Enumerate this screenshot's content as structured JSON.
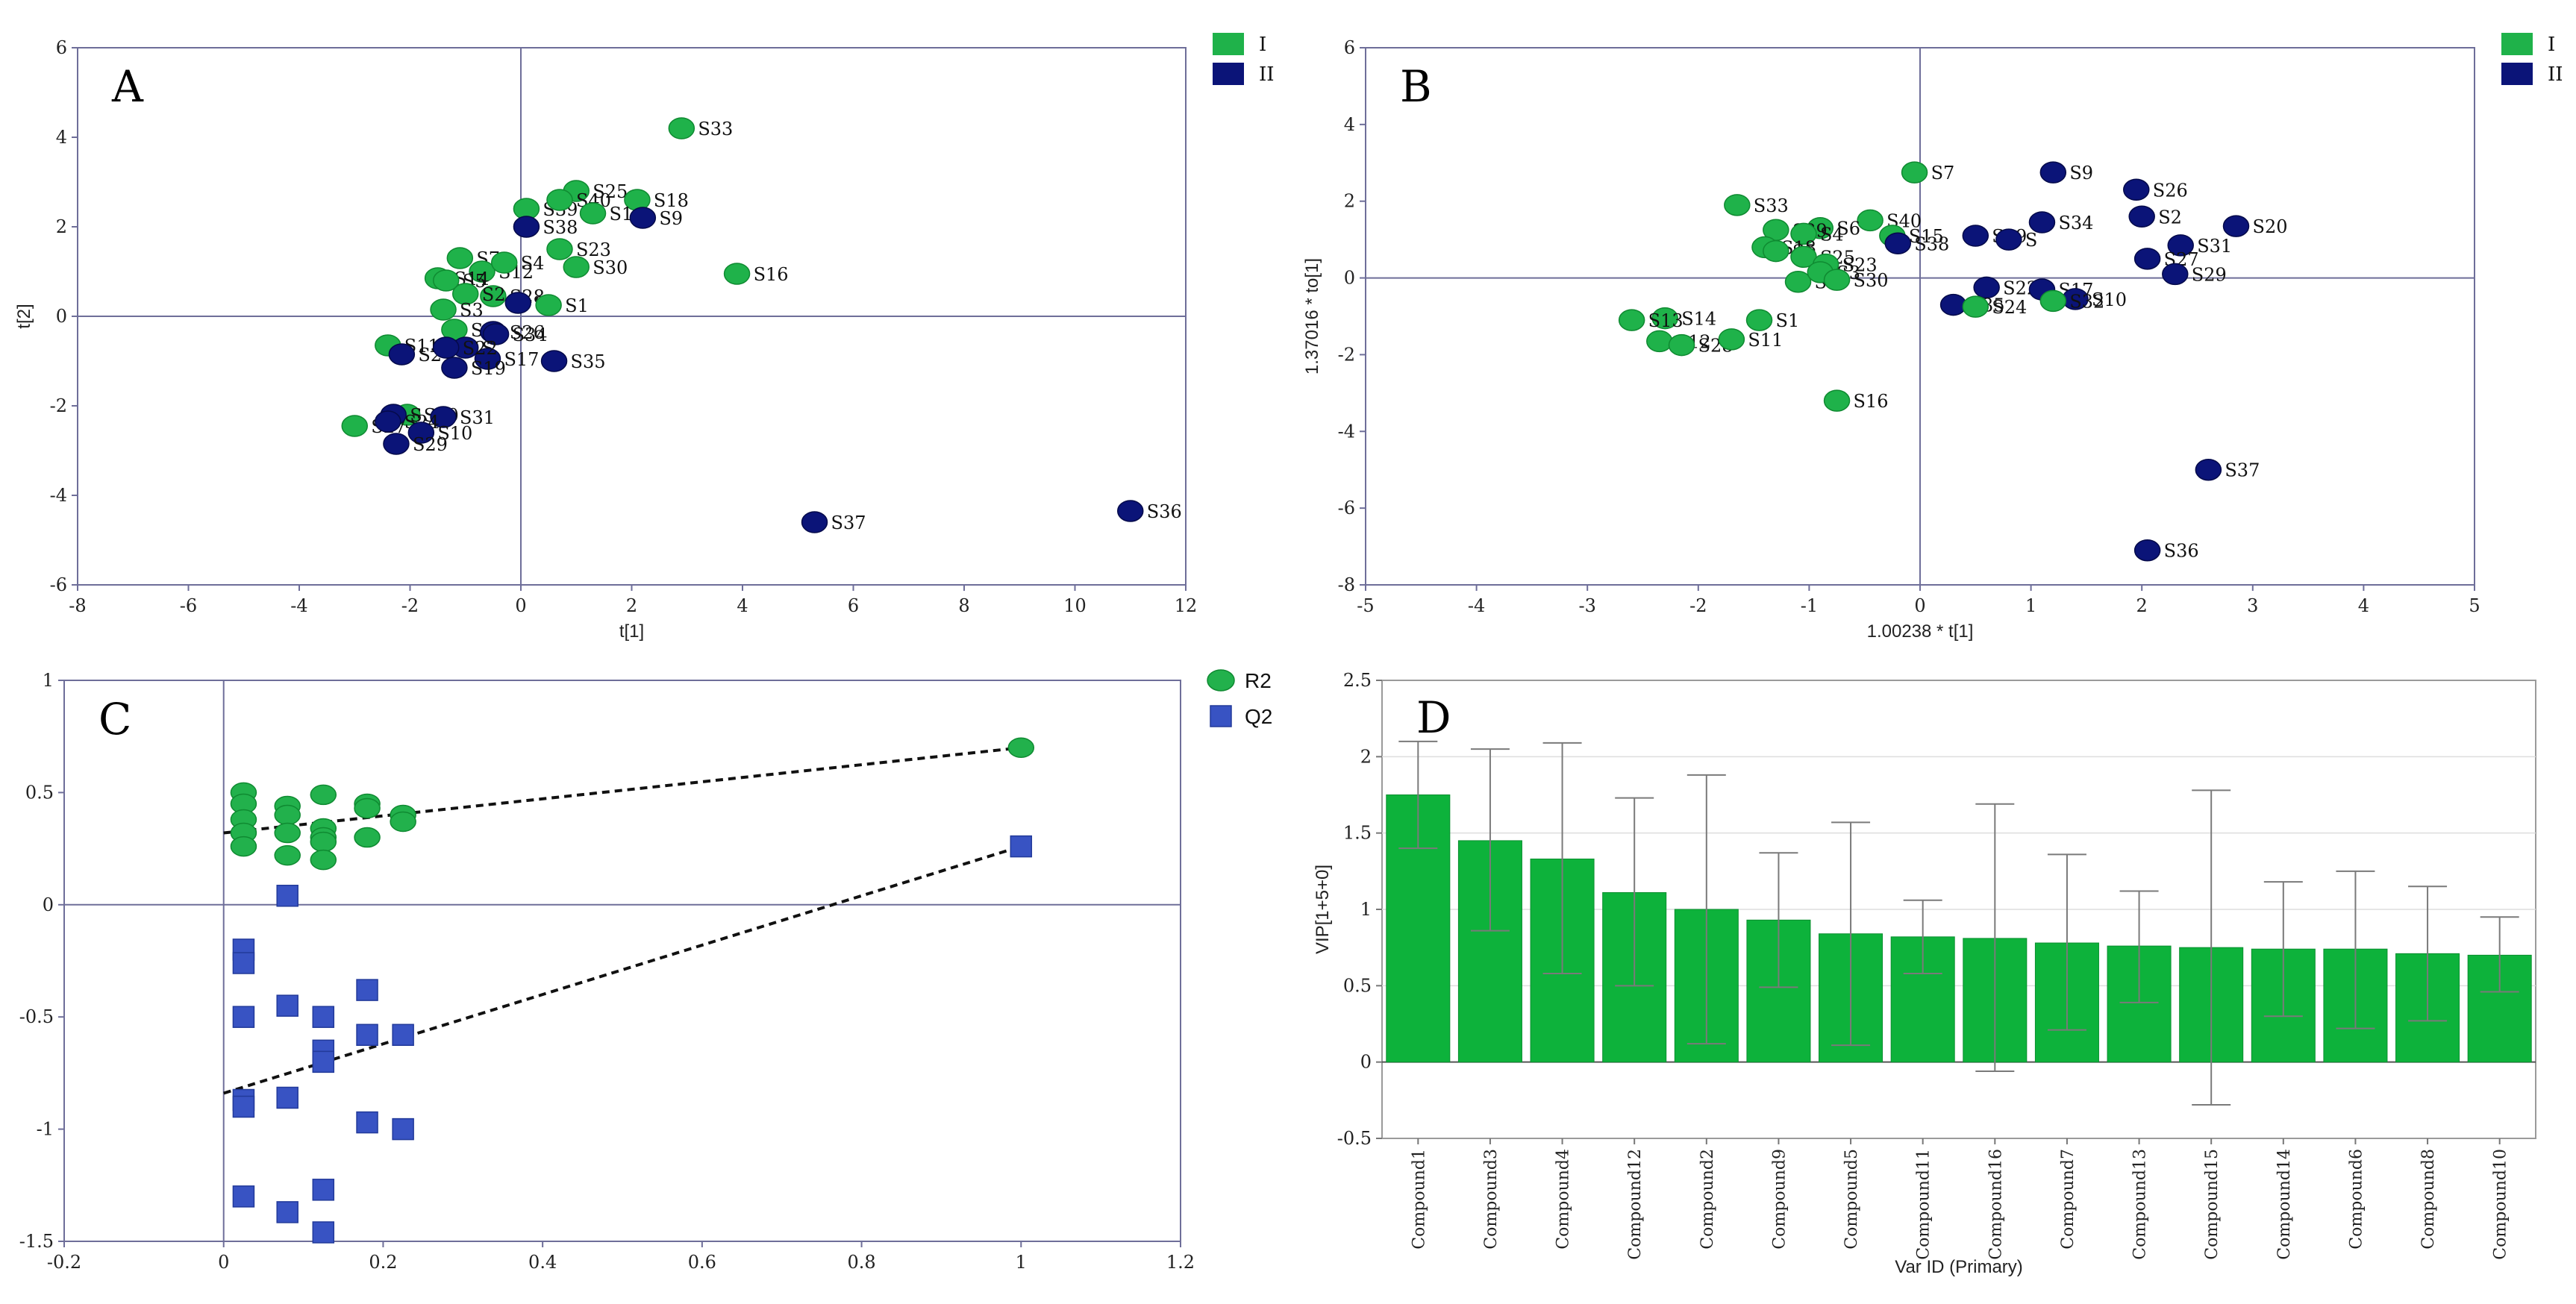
{
  "colors": {
    "group1": "#1fb24a",
    "group1_edge": "#0f8a31",
    "group2": "#0b1478",
    "group2_edge": "#050a4a",
    "r2": "#22b14c",
    "q2": "#3853c3",
    "bar": "#0db23b",
    "axis": "#6e6e99"
  },
  "chart_data": [
    {
      "id": "A",
      "panel_label": "A",
      "type": "scatter",
      "xlabel": "t[1]",
      "ylabel": "t[2]",
      "xlim": [
        -8,
        12
      ],
      "ylim": [
        -6,
        6
      ],
      "xticks": [
        -8,
        -6,
        -4,
        -2,
        0,
        2,
        4,
        6,
        8,
        10,
        12
      ],
      "yticks": [
        -6,
        -4,
        -2,
        0,
        2,
        4,
        6
      ],
      "legend": [
        {
          "group": "I",
          "label": "I"
        },
        {
          "group": "II",
          "label": "II"
        }
      ],
      "points": [
        {
          "label": "S33",
          "x": 2.9,
          "y": 4.2,
          "group": "I"
        },
        {
          "label": "S25",
          "x": 1.0,
          "y": 2.8,
          "group": "I"
        },
        {
          "label": "S39",
          "x": 0.1,
          "y": 2.4,
          "group": "I"
        },
        {
          "label": "S18",
          "x": 2.1,
          "y": 2.6,
          "group": "I"
        },
        {
          "label": "S40",
          "x": 0.7,
          "y": 2.6,
          "group": "I"
        },
        {
          "label": "S1",
          "x": 1.3,
          "y": 2.3,
          "group": "I"
        },
        {
          "label": "S9",
          "x": 2.2,
          "y": 2.2,
          "group": "II"
        },
        {
          "label": "S38",
          "x": 0.1,
          "y": 2.0,
          "group": "II"
        },
        {
          "label": "S7",
          "x": -1.1,
          "y": 1.3,
          "group": "I"
        },
        {
          "label": "S12",
          "x": -0.7,
          "y": 1.0,
          "group": "I"
        },
        {
          "label": "S23",
          "x": 0.7,
          "y": 1.5,
          "group": "I"
        },
        {
          "label": "S4",
          "x": -0.3,
          "y": 1.2,
          "group": "I"
        },
        {
          "label": "S30",
          "x": 1.0,
          "y": 1.1,
          "group": "I"
        },
        {
          "label": "S16",
          "x": 3.9,
          "y": 0.95,
          "group": "I"
        },
        {
          "label": "S14",
          "x": -1.5,
          "y": 0.85,
          "group": "I"
        },
        {
          "label": "S5",
          "x": -1.35,
          "y": 0.8,
          "group": "I"
        },
        {
          "label": "S28",
          "x": -0.5,
          "y": 0.45,
          "group": "I"
        },
        {
          "label": "S2",
          "x": -1.0,
          "y": 0.5,
          "group": "I"
        },
        {
          "label": "S8",
          "x": -0.05,
          "y": 0.3,
          "group": "II"
        },
        {
          "label": "S1",
          "x": 0.5,
          "y": 0.25,
          "group": "I"
        },
        {
          "label": "S3",
          "x": -1.4,
          "y": 0.15,
          "group": "I"
        },
        {
          "label": "S6",
          "x": -1.2,
          "y": -0.3,
          "group": "I"
        },
        {
          "label": "S26",
          "x": -0.5,
          "y": -0.35,
          "group": "II"
        },
        {
          "label": "S34",
          "x": -0.45,
          "y": -0.4,
          "group": "II"
        },
        {
          "label": "S11",
          "x": -2.4,
          "y": -0.65,
          "group": "I"
        },
        {
          "label": "S21",
          "x": -2.15,
          "y": -0.85,
          "group": "II"
        },
        {
          "label": "S",
          "x": -1.0,
          "y": -0.7,
          "group": "II"
        },
        {
          "label": "S17",
          "x": -0.6,
          "y": -0.95,
          "group": "II"
        },
        {
          "label": "S35",
          "x": 0.6,
          "y": -1.0,
          "group": "II"
        },
        {
          "label": "S19",
          "x": -1.2,
          "y": -1.15,
          "group": "II"
        },
        {
          "label": "S22",
          "x": -1.35,
          "y": -0.7,
          "group": "II"
        },
        {
          "label": "S20",
          "x": -2.05,
          "y": -2.2,
          "group": "I"
        },
        {
          "label": "S27",
          "x": -3.0,
          "y": -2.45,
          "group": "I"
        },
        {
          "label": "S31",
          "x": -1.4,
          "y": -2.25,
          "group": "II"
        },
        {
          "label": "S",
          "x": -2.3,
          "y": -2.2,
          "group": "II"
        },
        {
          "label": "S24",
          "x": -2.4,
          "y": -2.35,
          "group": "II"
        },
        {
          "label": "S10",
          "x": -1.8,
          "y": -2.6,
          "group": "II"
        },
        {
          "label": "S29",
          "x": -2.25,
          "y": -2.85,
          "group": "II"
        },
        {
          "label": "S37",
          "x": 5.3,
          "y": -4.6,
          "group": "II"
        },
        {
          "label": "S36",
          "x": 11.0,
          "y": -4.35,
          "group": "II"
        }
      ]
    },
    {
      "id": "B",
      "panel_label": "B",
      "type": "scatter",
      "xlabel": "1.00238 * t[1]",
      "ylabel": "1.37016 * to[1]",
      "xlim": [
        -5,
        5
      ],
      "ylim": [
        -8,
        6
      ],
      "xticks": [
        -5,
        -4,
        -3,
        -2,
        -1,
        0,
        1,
        2,
        3,
        4,
        5
      ],
      "yticks": [
        -8,
        -6,
        -4,
        -2,
        0,
        2,
        4,
        6
      ],
      "legend": [
        {
          "group": "I",
          "label": "I"
        },
        {
          "group": "II",
          "label": "II"
        }
      ],
      "points": [
        {
          "label": "S7",
          "x": -0.05,
          "y": 2.75,
          "group": "I"
        },
        {
          "label": "S9",
          "x": 1.2,
          "y": 2.75,
          "group": "II"
        },
        {
          "label": "S26",
          "x": 1.95,
          "y": 2.3,
          "group": "II"
        },
        {
          "label": "S33",
          "x": -1.65,
          "y": 1.9,
          "group": "I"
        },
        {
          "label": "S40",
          "x": -0.45,
          "y": 1.5,
          "group": "I"
        },
        {
          "label": "S6",
          "x": -0.9,
          "y": 1.3,
          "group": "I"
        },
        {
          "label": "S39",
          "x": -1.3,
          "y": 1.25,
          "group": "I"
        },
        {
          "label": "S4",
          "x": -1.05,
          "y": 1.15,
          "group": "I"
        },
        {
          "label": "S15",
          "x": -0.25,
          "y": 1.1,
          "group": "I"
        },
        {
          "label": "S19",
          "x": 0.5,
          "y": 1.1,
          "group": "II"
        },
        {
          "label": "S",
          "x": 0.8,
          "y": 1.0,
          "group": "II"
        },
        {
          "label": "S34",
          "x": 1.1,
          "y": 1.45,
          "group": "II"
        },
        {
          "label": "S2",
          "x": 2.0,
          "y": 1.6,
          "group": "II"
        },
        {
          "label": "S20",
          "x": 2.85,
          "y": 1.35,
          "group": "II"
        },
        {
          "label": "S31",
          "x": 2.35,
          "y": 0.85,
          "group": "II"
        },
        {
          "label": "S38",
          "x": -0.2,
          "y": 0.9,
          "group": "II"
        },
        {
          "label": "S18",
          "x": -1.4,
          "y": 0.8,
          "group": "I"
        },
        {
          "label": "S5",
          "x": -1.3,
          "y": 0.7,
          "group": "I"
        },
        {
          "label": "S25",
          "x": -1.05,
          "y": 0.55,
          "group": "I"
        },
        {
          "label": "S23",
          "x": -0.85,
          "y": 0.35,
          "group": "I"
        },
        {
          "label": "S27",
          "x": 2.05,
          "y": 0.5,
          "group": "II"
        },
        {
          "label": "S29",
          "x": 2.3,
          "y": 0.1,
          "group": "II"
        },
        {
          "label": "S22",
          "x": 0.6,
          "y": -0.25,
          "group": "II"
        },
        {
          "label": "S17",
          "x": 1.1,
          "y": -0.3,
          "group": "II"
        },
        {
          "label": "S10",
          "x": 1.4,
          "y": -0.55,
          "group": "II"
        },
        {
          "label": "S32",
          "x": 1.2,
          "y": -0.6,
          "group": "I"
        },
        {
          "label": "S35",
          "x": 0.3,
          "y": -0.7,
          "group": "II"
        },
        {
          "label": "S24",
          "x": 0.5,
          "y": -0.75,
          "group": "I"
        },
        {
          "label": "S8",
          "x": -1.1,
          "y": -0.1,
          "group": "I"
        },
        {
          "label": "S3",
          "x": -0.9,
          "y": 0.15,
          "group": "I"
        },
        {
          "label": "S30",
          "x": -0.75,
          "y": -0.05,
          "group": "I"
        },
        {
          "label": "S14",
          "x": -2.3,
          "y": -1.05,
          "group": "I"
        },
        {
          "label": "S13",
          "x": -2.6,
          "y": -1.1,
          "group": "I"
        },
        {
          "label": "S1",
          "x": -1.45,
          "y": -1.1,
          "group": "I"
        },
        {
          "label": "S12",
          "x": -2.35,
          "y": -1.65,
          "group": "I"
        },
        {
          "label": "S28",
          "x": -2.15,
          "y": -1.75,
          "group": "I"
        },
        {
          "label": "S11",
          "x": -1.7,
          "y": -1.6,
          "group": "I"
        },
        {
          "label": "S16",
          "x": -0.75,
          "y": -3.2,
          "group": "I"
        },
        {
          "label": "S37",
          "x": 2.6,
          "y": -5.0,
          "group": "II"
        },
        {
          "label": "S36",
          "x": 2.05,
          "y": -7.1,
          "group": "II"
        }
      ]
    },
    {
      "id": "C",
      "panel_label": "C",
      "type": "scatter",
      "xlabel": "",
      "ylabel": "",
      "xlim": [
        -0.2,
        1.2
      ],
      "ylim": [
        -1.5,
        1
      ],
      "xticks": [
        -0.2,
        0,
        0.2,
        0.4,
        0.6,
        0.8,
        1,
        1.2
      ],
      "yticks": [
        -1.5,
        -1,
        -0.5,
        0,
        0.5,
        1
      ],
      "legend": [
        {
          "series": "R2",
          "label": "R2"
        },
        {
          "series": "Q2",
          "label": "Q2"
        }
      ],
      "series": [
        {
          "name": "R2",
          "marker": "circle",
          "points": [
            [
              0.025,
              0.5
            ],
            [
              0.025,
              0.45
            ],
            [
              0.025,
              0.38
            ],
            [
              0.025,
              0.32
            ],
            [
              0.025,
              0.26
            ],
            [
              0.08,
              0.44
            ],
            [
              0.08,
              0.4
            ],
            [
              0.08,
              0.32
            ],
            [
              0.08,
              0.22
            ],
            [
              0.125,
              0.49
            ],
            [
              0.125,
              0.34
            ],
            [
              0.125,
              0.3
            ],
            [
              0.125,
              0.28
            ],
            [
              0.125,
              0.2
            ],
            [
              0.18,
              0.45
            ],
            [
              0.18,
              0.43
            ],
            [
              0.18,
              0.3
            ],
            [
              0.225,
              0.4
            ],
            [
              0.225,
              0.37
            ],
            [
              1.0,
              0.7
            ]
          ],
          "regression": {
            "intercept": 0.32,
            "slope": 0.38
          }
        },
        {
          "name": "Q2",
          "marker": "square",
          "points": [
            [
              0.025,
              -0.2
            ],
            [
              0.025,
              -0.26
            ],
            [
              0.025,
              -0.5
            ],
            [
              0.025,
              -0.87
            ],
            [
              0.025,
              -0.9
            ],
            [
              0.025,
              -1.3
            ],
            [
              0.08,
              0.04
            ],
            [
              0.08,
              -0.45
            ],
            [
              0.08,
              -0.86
            ],
            [
              0.08,
              -1.37
            ],
            [
              0.125,
              -0.5
            ],
            [
              0.125,
              -0.65
            ],
            [
              0.125,
              -0.7
            ],
            [
              0.125,
              -1.27
            ],
            [
              0.125,
              -1.46
            ],
            [
              0.18,
              -0.38
            ],
            [
              0.18,
              -0.58
            ],
            [
              0.18,
              -0.97
            ],
            [
              0.225,
              -0.58
            ],
            [
              0.225,
              -1.0
            ],
            [
              1.0,
              0.26
            ]
          ],
          "regression": {
            "intercept": -0.84,
            "slope": 1.1
          }
        }
      ]
    },
    {
      "id": "D",
      "panel_label": "D",
      "type": "bar",
      "xlabel": "Var ID (Primary)",
      "ylabel": "VIP[1+5+0]",
      "ylim": [
        -0.5,
        2.5
      ],
      "yticks": [
        -0.5,
        0,
        0.5,
        1,
        1.5,
        2,
        2.5
      ],
      "categories": [
        "Compound1",
        "Compound3",
        "Compound4",
        "Compound12",
        "Compound2",
        "Compound9",
        "Compound5",
        "Compound11",
        "Compound16",
        "Compound7",
        "Compound13",
        "Compound15",
        "Compound14",
        "Compound6",
        "Compound8",
        "Compound10"
      ],
      "values": [
        1.75,
        1.45,
        1.33,
        1.11,
        1.0,
        0.93,
        0.84,
        0.82,
        0.81,
        0.78,
        0.76,
        0.75,
        0.74,
        0.74,
        0.71,
        0.7
      ],
      "error_low": [
        1.4,
        0.86,
        0.58,
        0.5,
        0.12,
        0.49,
        0.11,
        0.58,
        -0.06,
        0.21,
        0.39,
        -0.28,
        0.3,
        0.22,
        0.27,
        0.46
      ],
      "error_high": [
        2.1,
        2.05,
        2.09,
        1.73,
        1.88,
        1.37,
        1.57,
        1.06,
        1.69,
        1.36,
        1.12,
        1.78,
        1.18,
        1.25,
        1.15,
        0.95
      ]
    }
  ]
}
